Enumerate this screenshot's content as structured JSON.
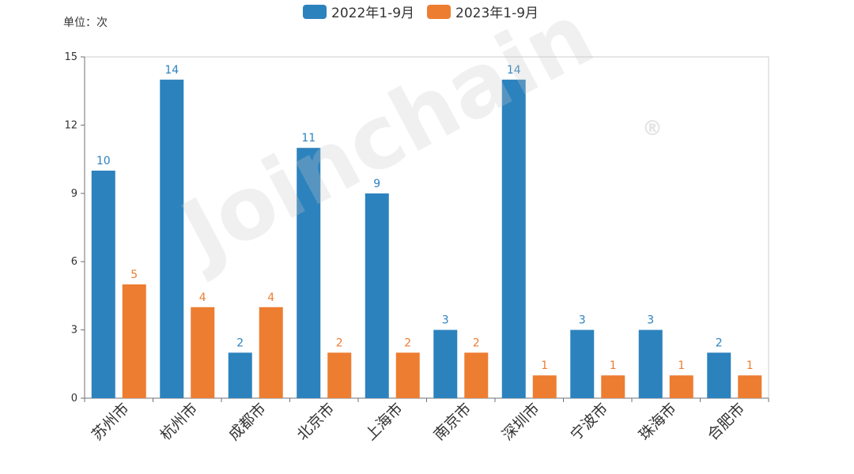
{
  "unit_label": "单位：次",
  "watermark": "Joinchain",
  "watermark_mark": "®",
  "colors": {
    "series1": "#2c82bd",
    "series2": "#ed7d31",
    "axis": "#6e7079",
    "grid": "#e5e5e5"
  },
  "chart_data": {
    "type": "bar",
    "title": "",
    "xlabel": "",
    "ylabel": "",
    "categories": [
      "苏州市",
      "杭州市",
      "成都市",
      "北京市",
      "上海市",
      "南京市",
      "深圳市",
      "宁波市",
      "珠海市",
      "合肥市"
    ],
    "series": [
      {
        "name": "2022年1-9月",
        "values": [
          10,
          14,
          2,
          11,
          9,
          3,
          14,
          3,
          3,
          2
        ]
      },
      {
        "name": "2023年1-9月",
        "values": [
          5,
          4,
          4,
          2,
          2,
          2,
          1,
          1,
          1,
          1
        ]
      }
    ],
    "ylim": [
      0,
      15
    ],
    "yticks": [
      0,
      3,
      6,
      9,
      12,
      15
    ],
    "legend_position": "top-center",
    "grid": false
  }
}
